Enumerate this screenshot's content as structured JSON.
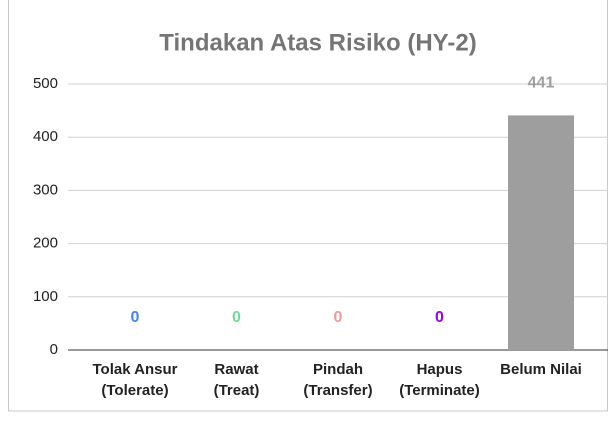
{
  "chart_data": {
    "type": "bar",
    "title": "Tindakan Atas Risiko (HY-2)",
    "categories": [
      [
        "Tolak Ansur",
        "(Tolerate)"
      ],
      [
        "Rawat",
        "(Treat)"
      ],
      [
        "Pindah",
        "(Transfer)"
      ],
      [
        "Hapus",
        "(Terminate)"
      ],
      [
        "Belum Nilai"
      ]
    ],
    "values": [
      0,
      0,
      0,
      0,
      441
    ],
    "colors": [
      "#4285f4",
      "#6fdc9a",
      "#ec9b9b",
      "#9b00f0",
      "#9e9e9e"
    ],
    "ylim": [
      0,
      500
    ],
    "yticks": [
      0,
      100,
      200,
      300,
      400,
      500
    ],
    "grid": true
  }
}
